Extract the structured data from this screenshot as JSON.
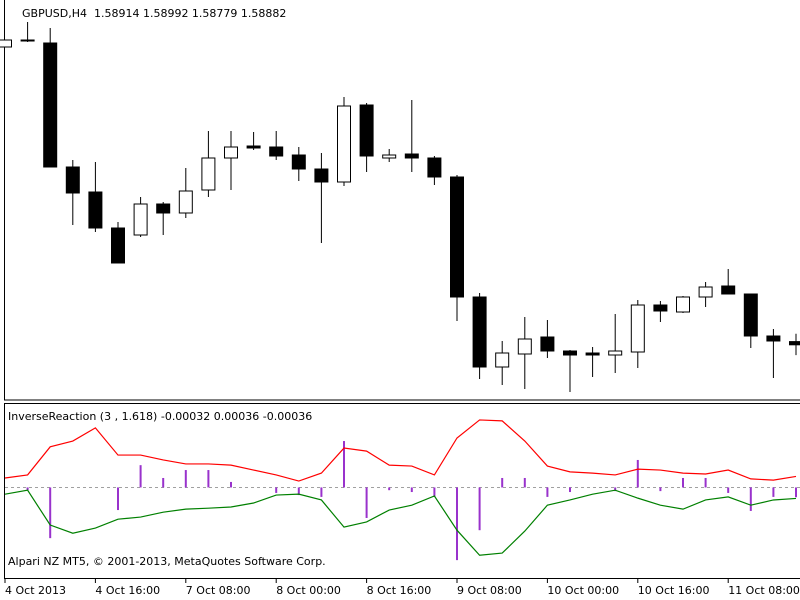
{
  "chart_data": [
    {
      "type": "candlestick",
      "title": "GBPUSD,H4  1.58914 1.58992 1.58779 1.58882",
      "up_color": "#ffffff",
      "down_color": "#000000",
      "line_color": "#000000",
      "open": [
        1.6186,
        1.6192,
        1.619,
        1.6066,
        1.6041,
        1.6005,
        1.5998,
        1.6029,
        1.602,
        1.6043,
        1.6075,
        1.6087,
        1.6086,
        1.6078,
        1.6064,
        1.6051,
        1.6128,
        1.6075,
        1.6079,
        1.6075,
        1.6056,
        1.5936,
        1.5866,
        1.5879,
        1.5896,
        1.5882,
        1.588,
        1.5878,
        1.5881,
        1.5928,
        1.5921,
        1.5936,
        1.5947,
        1.5939,
        1.5897,
        1.58914
      ],
      "high": [
        1.6193,
        1.6211,
        1.6205,
        1.6073,
        1.6071,
        1.6011,
        1.6036,
        1.6031,
        1.6065,
        1.6102,
        1.6102,
        1.6101,
        1.6102,
        1.6086,
        1.608,
        1.6136,
        1.613,
        1.6084,
        1.6133,
        1.6077,
        1.6058,
        1.594,
        1.5892,
        1.5916,
        1.5913,
        1.5883,
        1.5886,
        1.5919,
        1.5933,
        1.5932,
        1.5937,
        1.5951,
        1.5964,
        1.5939,
        1.5904,
        1.58992
      ],
      "low": [
        1.6186,
        1.6191,
        1.6066,
        1.6008,
        1.6001,
        1.597,
        1.5996,
        1.5998,
        1.6015,
        1.6036,
        1.6043,
        1.6083,
        1.6073,
        1.6052,
        1.599,
        1.6047,
        1.6061,
        1.6071,
        1.6061,
        1.6048,
        1.5912,
        1.5854,
        1.5848,
        1.5844,
        1.5875,
        1.5841,
        1.5856,
        1.586,
        1.5865,
        1.5911,
        1.592,
        1.5926,
        1.5939,
        1.5885,
        1.5855,
        1.58779
      ],
      "close": [
        1.6193,
        1.6193,
        1.6066,
        1.604,
        1.6005,
        1.597,
        1.6029,
        1.602,
        1.6042,
        1.6075,
        1.6086,
        1.6085,
        1.6077,
        1.6064,
        1.6051,
        1.6127,
        1.6077,
        1.6078,
        1.6075,
        1.6056,
        1.5936,
        1.5866,
        1.588,
        1.5894,
        1.5882,
        1.5878,
        1.5878,
        1.5882,
        1.5928,
        1.5922,
        1.5936,
        1.5946,
        1.5939,
        1.5897,
        1.5892,
        1.58882
      ],
      "ylim": [
        1.5835,
        1.6225
      ]
    },
    {
      "type": "combo",
      "title": "InverseReaction (3 , 1.618) -0.00032 0.00036 -0.00036",
      "footer": "Alpari NZ MT5, © 2001-2013, MetaQuotes Software Corp.",
      "categories": [
        "4 Oct 2013",
        null,
        null,
        null,
        "4 Oct 16:00",
        null,
        null,
        null,
        "7 Oct 08:00",
        null,
        null,
        null,
        "8 Oct 00:00",
        null,
        null,
        null,
        "8 Oct 16:00",
        null,
        null,
        null,
        "9 Oct 08:00",
        null,
        null,
        null,
        "10 Oct 00:00",
        null,
        null,
        null,
        "10 Oct 16:00",
        null,
        null,
        null,
        "11 Oct 08:00",
        null,
        null,
        null
      ],
      "series": [
        {
          "type": "bar",
          "color": "#9932cc",
          "values": [
            0,
            -9e-05,
            -0.00166,
            0,
            0,
            -0.00074,
            0.00073,
            0.00031,
            0.00057,
            0.00057,
            0.00018,
            0,
            -0.00018,
            -0.00025,
            -0.00031,
            0.00152,
            -0.001,
            -9e-05,
            -0.00015,
            -0.00031,
            -0.00238,
            -0.0014,
            0.00031,
            0.00031,
            -0.00031,
            -0.00015,
            0,
            -0.00012,
            0.0009,
            -0.00012,
            0.00031,
            0.00031,
            -0.00018,
            -0.00077,
            -0.00031,
            -0.00032
          ]
        },
        {
          "type": "line",
          "color": "#ff0000",
          "values": [
            0.00031,
            0.00041,
            0.00133,
            0.00152,
            0.00195,
            0.00106,
            0.00106,
            0.0009,
            0.00077,
            0.00077,
            0.00073,
            0.00057,
            0.00041,
            0.00021,
            0.00047,
            0.00129,
            0.00119,
            0.00073,
            0.0007,
            0.00041,
            0.00162,
            0.00221,
            0.00218,
            0.00152,
            0.0007,
            0.00051,
            0.00047,
            0.00041,
            0.0006,
            0.00057,
            0.00047,
            0.00044,
            0.00057,
            0.00028,
            0.00024,
            0.00036
          ]
        },
        {
          "type": "line",
          "color": "#008000",
          "values": [
            -0.00022,
            -9e-05,
            -0.00123,
            -0.0015,
            -0.00133,
            -0.00104,
            -0.00097,
            -0.00081,
            -0.00071,
            -0.00068,
            -0.00064,
            -0.00051,
            -0.00025,
            -0.00022,
            -0.00041,
            -0.0013,
            -0.00113,
            -0.00074,
            -0.00058,
            -0.00028,
            -0.0014,
            -0.00222,
            -0.00215,
            -0.00143,
            -0.00058,
            -0.00041,
            -0.00022,
            -9e-05,
            -0.00035,
            -0.00058,
            -0.00071,
            -0.00041,
            -0.00031,
            -0.00058,
            -0.00041,
            -0.00036
          ]
        }
      ],
      "ylim": [
        -0.0029,
        0.0027
      ]
    }
  ]
}
